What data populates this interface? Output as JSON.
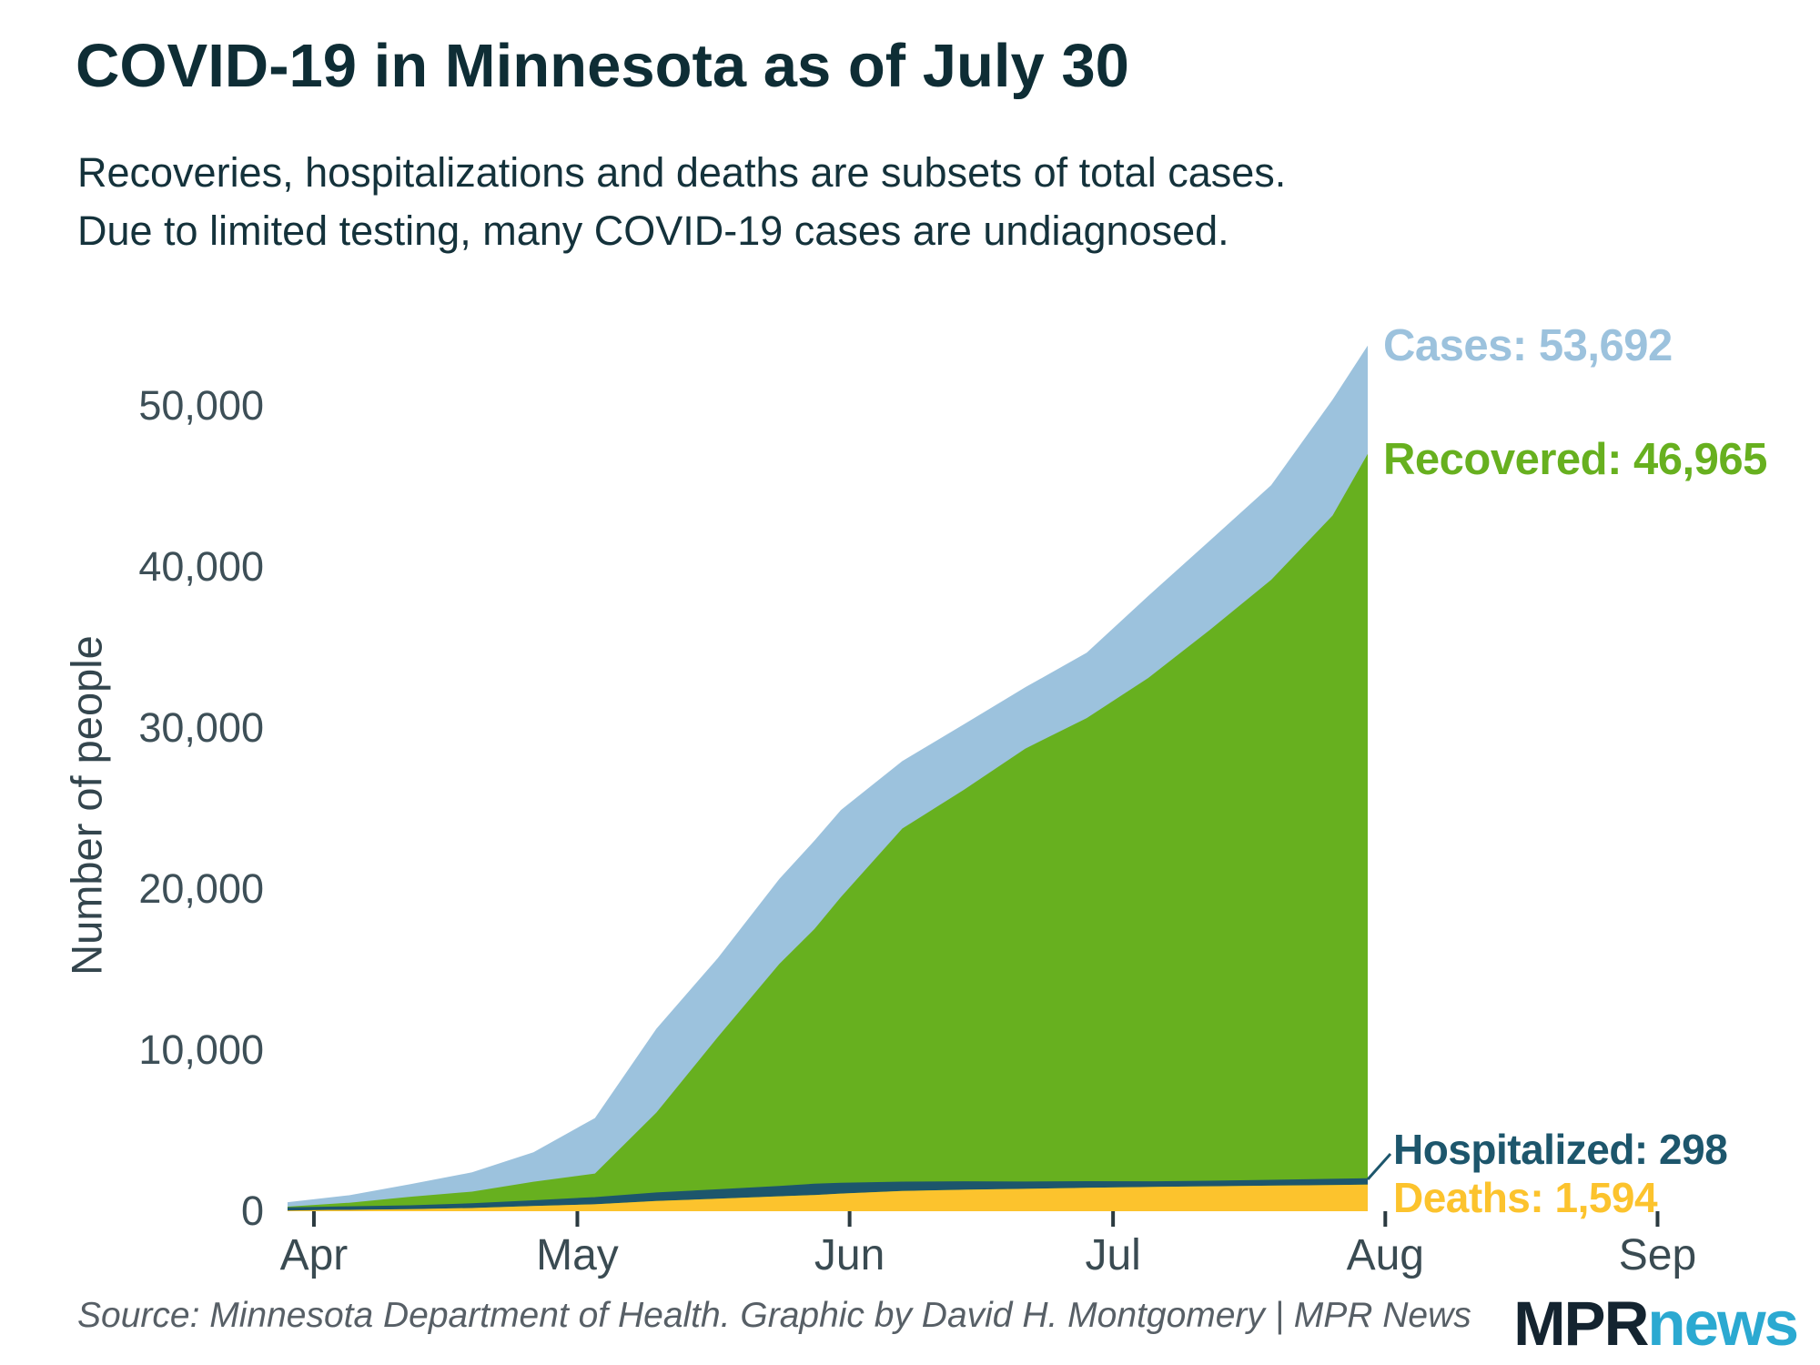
{
  "header": {
    "title": "COVID-19 in Minnesota as of July 30",
    "subtitle_line1": "Recoveries, hospitalizations and deaths are subsets of total cases.",
    "subtitle_line2": "Due to limited testing, many COVID-19 cases are undiagnosed."
  },
  "annotations": {
    "cases": "Cases: 53,692",
    "recovered": "Recovered: 46,965",
    "hospitalized": "Hospitalized: 298",
    "deaths": "Deaths: 1,594"
  },
  "footer": {
    "source": "Source: Minnesota Department of Health. Graphic by David H. Montgomery | MPR News",
    "logo_mpr": "MPR",
    "logo_news": "news"
  },
  "colors": {
    "cases_blue": "#9cc2dd",
    "recovered_green": "#67b01f",
    "hospitalized_navy": "#1d566c",
    "deaths_yellow": "#fcc32d",
    "title_dark": "#0e2d35",
    "axis_text": "#3d4f57",
    "tick_mark": "#2b3a40",
    "logo_dark": "#142430",
    "logo_cyan": "#2ba9d1"
  },
  "chart_data": {
    "type": "area",
    "title": "COVID-19 in Minnesota as of July 30",
    "x_start_date": "Mar 29",
    "x_end_date": "Jul 30",
    "days_since_start": [
      0,
      7,
      14,
      21,
      28,
      35,
      42,
      49,
      56,
      60,
      63,
      70,
      77,
      84,
      91,
      98,
      105,
      112,
      119,
      123
    ],
    "series": [
      {
        "name": "Cases",
        "style": "area",
        "color": "#9cc2dd",
        "values": [
          503,
          935,
          1621,
          2356,
          3602,
          5730,
          11271,
          15668,
          20573,
          22947,
          24850,
          27886,
          30172,
          32467,
          34616,
          38136,
          41571,
          45013,
          50331,
          53692
        ]
      },
      {
        "name": "Recovered",
        "style": "area",
        "color": "#67b01f",
        "values": [
          227,
          470,
          844,
          1160,
          1774,
          2282,
          6066,
          10764,
          15294,
          17466,
          19441,
          23702,
          26103,
          28663,
          30557,
          33044,
          36024,
          39133,
          43135,
          46965
        ]
      },
      {
        "name": "Hospitalized",
        "style": "band-stacked-on-deaths",
        "color": "#1d566c",
        "values": [
          75,
          120,
          145,
          197,
          255,
          350,
          435,
          485,
          545,
          606,
          570,
          480,
          420,
          355,
          310,
          255,
          245,
          260,
          285,
          298
        ]
      },
      {
        "name": "Deaths",
        "style": "area",
        "color": "#fcc32d",
        "values": [
          9,
          29,
          70,
          143,
          272,
          371,
          578,
          722,
          869,
          950,
          1040,
          1197,
          1278,
          1333,
          1397,
          1444,
          1492,
          1533,
          1571,
          1594
        ]
      }
    ],
    "final_values": {
      "cases": 53692,
      "recovered": 46965,
      "hospitalized": 298,
      "deaths": 1594
    },
    "y_axis": {
      "label": "Number of people",
      "range": [
        0,
        56000
      ],
      "grid": false,
      "ticks": [
        0,
        10000,
        20000,
        30000,
        40000,
        50000
      ],
      "tick_labels": [
        "0",
        "10,000",
        "20,000",
        "30,000",
        "40,000",
        "50,000"
      ]
    },
    "x_axis": {
      "tick_labels": [
        "Apr",
        "May",
        "Jun",
        "Jul",
        "Aug",
        "Sep"
      ],
      "tick_days": [
        3,
        33,
        64,
        94,
        125,
        156
      ]
    },
    "legend_position": "direct-labels-right-of-area"
  }
}
